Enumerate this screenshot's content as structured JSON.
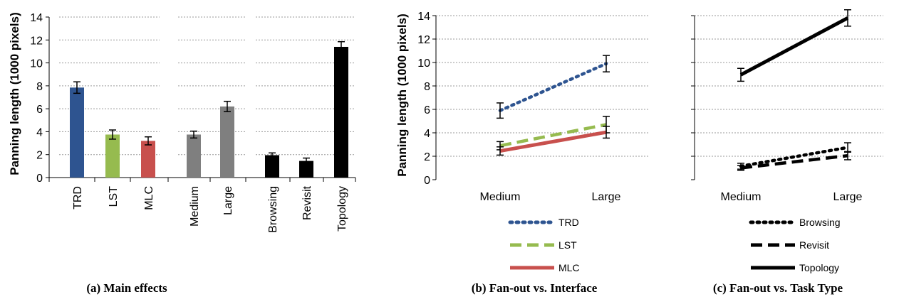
{
  "chart_data": [
    {
      "type": "bar",
      "caption": "(a) Main effects",
      "ylabel": "Panning length (1000 pixels)",
      "ylim": [
        0,
        14
      ],
      "yticks": [
        "0",
        "2",
        "4",
        "6",
        "8",
        "10",
        "12",
        "14"
      ],
      "grid": true,
      "groups": [
        {
          "categories": [
            "TRD",
            "LST",
            "MLC"
          ],
          "values": [
            7.85,
            3.75,
            3.2
          ],
          "errors": [
            0.5,
            0.4,
            0.35
          ],
          "colors": [
            "#2e5490",
            "#96bb4f",
            "#c8504d"
          ]
        },
        {
          "categories": [
            "Medium",
            "Large"
          ],
          "values": [
            3.75,
            6.2
          ],
          "errors": [
            0.3,
            0.45
          ],
          "colors": [
            "#7f7f7f",
            "#7f7f7f"
          ]
        },
        {
          "categories": [
            "Browsing",
            "Revisit",
            "Topology"
          ],
          "values": [
            1.95,
            1.45,
            11.4
          ],
          "errors": [
            0.2,
            0.25,
            0.45
          ],
          "colors": [
            "#000000",
            "#000000",
            "#000000"
          ]
        }
      ]
    },
    {
      "type": "line",
      "caption": "(b) Fan-out vs. Interface",
      "ylabel": "Panning length (1000 pixels)",
      "ylim": [
        0,
        14
      ],
      "yticks": [
        "0",
        "2",
        "4",
        "6",
        "8",
        "10",
        "12",
        "14"
      ],
      "categories": [
        "Medium",
        "Large"
      ],
      "grid": true,
      "legend": "bottom",
      "series": [
        {
          "name": "TRD",
          "values": [
            5.9,
            9.9
          ],
          "errors": [
            0.65,
            0.7
          ],
          "color": "#2e5490",
          "style": "dotted"
        },
        {
          "name": "LST",
          "values": [
            2.9,
            4.7
          ],
          "errors": [
            0.35,
            0.7
          ],
          "color": "#96bb4f",
          "style": "dashed"
        },
        {
          "name": "MLC",
          "values": [
            2.45,
            4.05
          ],
          "errors": [
            0.35,
            0.5
          ],
          "color": "#c8504d",
          "style": "solid"
        }
      ]
    },
    {
      "type": "line",
      "caption": "(c) Fan-out vs. Task Type",
      "ylim": [
        0,
        14
      ],
      "yticks": [
        "0",
        "2",
        "4",
        "6",
        "8",
        "10",
        "12",
        "14"
      ],
      "categories": [
        "Medium",
        "Large"
      ],
      "grid": true,
      "legend": "bottom",
      "series": [
        {
          "name": "Browsing",
          "values": [
            1.15,
            2.75
          ],
          "errors": [
            0.25,
            0.4
          ],
          "color": "#000000",
          "style": "dotted"
        },
        {
          "name": "Revisit",
          "values": [
            1.0,
            2.05
          ],
          "errors": [
            0.2,
            0.35
          ],
          "color": "#000000",
          "style": "dashed"
        },
        {
          "name": "Topology",
          "values": [
            8.95,
            13.8
          ],
          "errors": [
            0.55,
            0.7
          ],
          "color": "#000000",
          "style": "solid"
        }
      ]
    }
  ]
}
